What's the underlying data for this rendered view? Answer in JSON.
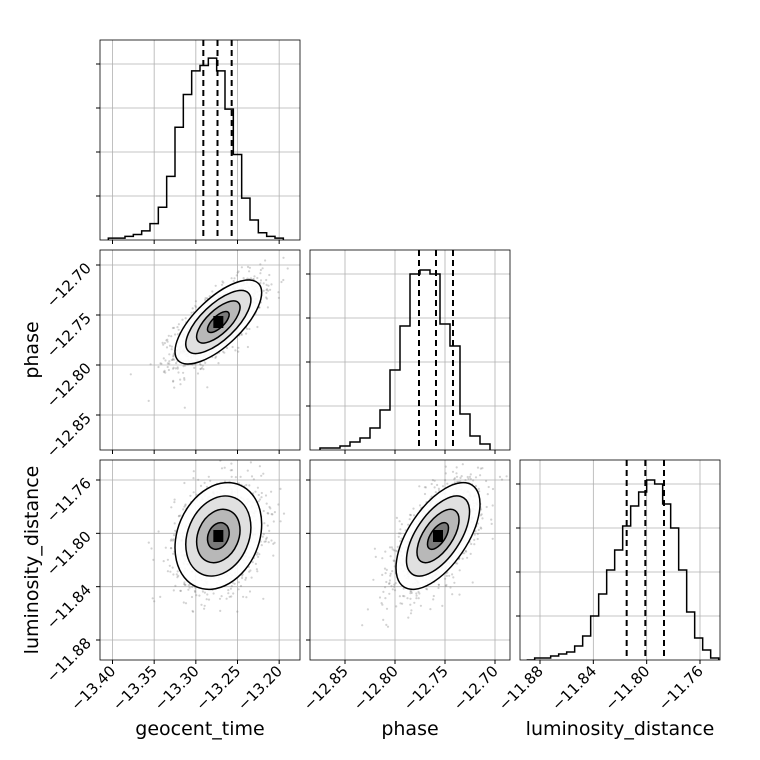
{
  "chart_data": {
    "type": "corner",
    "parameters": [
      "geocent_time",
      "phase",
      "luminosity_distance"
    ],
    "axis_labels": {
      "x": [
        "geocent_time",
        "phase",
        "luminosity_distance"
      ],
      "y": [
        "",
        "phase",
        "luminosity_distance"
      ]
    },
    "ranges": [
      [
        -13.415,
        -13.175
      ],
      [
        -12.885,
        -12.685
      ],
      [
        -11.895,
        -11.745
      ]
    ],
    "ticks": [
      [
        -13.4,
        -13.35,
        -13.3,
        -13.25,
        -13.2
      ],
      [
        -12.85,
        -12.8,
        -12.75,
        -12.7
      ],
      [
        -11.88,
        -11.84,
        -11.8,
        -11.76
      ]
    ],
    "tick_labels": [
      [
        "−13.40",
        "−13.35",
        "−13.30",
        "−13.25",
        "−13.20"
      ],
      [
        "−12.85",
        "−12.80",
        "−12.75",
        "−12.70"
      ],
      [
        "−11.88",
        "−11.84",
        "−11.80",
        "−11.76"
      ]
    ],
    "quantiles": [
      [
        -13.291,
        -13.274,
        -13.257
      ],
      [
        -12.776,
        -12.759,
        -12.742
      ],
      [
        -11.815,
        -11.801,
        -11.787
      ]
    ],
    "histograms": [
      {
        "param": "geocent_time",
        "bin_edges": [
          -13.405,
          -13.395,
          -13.385,
          -13.375,
          -13.365,
          -13.355,
          -13.345,
          -13.335,
          -13.325,
          -13.315,
          -13.305,
          -13.295,
          -13.285,
          -13.275,
          -13.265,
          -13.255,
          -13.245,
          -13.235,
          -13.225,
          -13.215,
          -13.205,
          -13.195
        ],
        "counts": [
          1,
          1,
          2,
          3,
          5,
          9,
          18,
          35,
          62,
          80,
          93,
          96,
          100,
          93,
          72,
          47,
          23,
          11,
          4,
          2,
          1
        ],
        "ymax": 110
      },
      {
        "param": "phase",
        "bin_edges": [
          -12.875,
          -12.865,
          -12.855,
          -12.845,
          -12.835,
          -12.825,
          -12.815,
          -12.805,
          -12.795,
          -12.785,
          -12.775,
          -12.765,
          -12.755,
          -12.745,
          -12.735,
          -12.725,
          -12.715,
          -12.705
        ],
        "counts": [
          1,
          1,
          2,
          4,
          6,
          11,
          20,
          40,
          62,
          88,
          90,
          88,
          63,
          52,
          18,
          7,
          3
        ],
        "ymax": 100
      },
      {
        "param": "luminosity_distance",
        "bin_edges": [
          -11.89,
          -11.884,
          -11.878,
          -11.872,
          -11.866,
          -11.86,
          -11.854,
          -11.848,
          -11.842,
          -11.836,
          -11.83,
          -11.824,
          -11.818,
          -11.812,
          -11.806,
          -11.8,
          -11.794,
          -11.788,
          -11.782,
          -11.776,
          -11.77,
          -11.764,
          -11.758,
          -11.752,
          -11.746
        ],
        "counts": [
          0,
          1,
          1,
          2,
          3,
          4,
          7,
          12,
          22,
          33,
          45,
          55,
          67,
          77,
          84,
          90,
          88,
          78,
          66,
          45,
          24,
          11,
          5,
          1
        ],
        "ymax": 100
      }
    ],
    "correlations": [
      {
        "x": "geocent_time",
        "y": "phase",
        "center": [
          -13.273,
          -12.757
        ],
        "sd": [
          0.026,
          0.021
        ],
        "rho": 0.7
      },
      {
        "x": "geocent_time",
        "y": "luminosity_distance",
        "center": [
          -13.273,
          -11.802
        ],
        "sd": [
          0.026,
          0.02
        ],
        "rho": 0.22
      },
      {
        "x": "phase",
        "y": "luminosity_distance",
        "center": [
          -12.757,
          -11.802
        ],
        "sd": [
          0.021,
          0.02
        ],
        "rho": 0.6
      }
    ],
    "contour_levels_sigma": [
      0.5,
      1.0,
      1.5,
      2.0
    ],
    "grid": true,
    "colors": {
      "line": "#000000",
      "grid": "#b0b0b0",
      "points": "#7f7f7f"
    }
  }
}
